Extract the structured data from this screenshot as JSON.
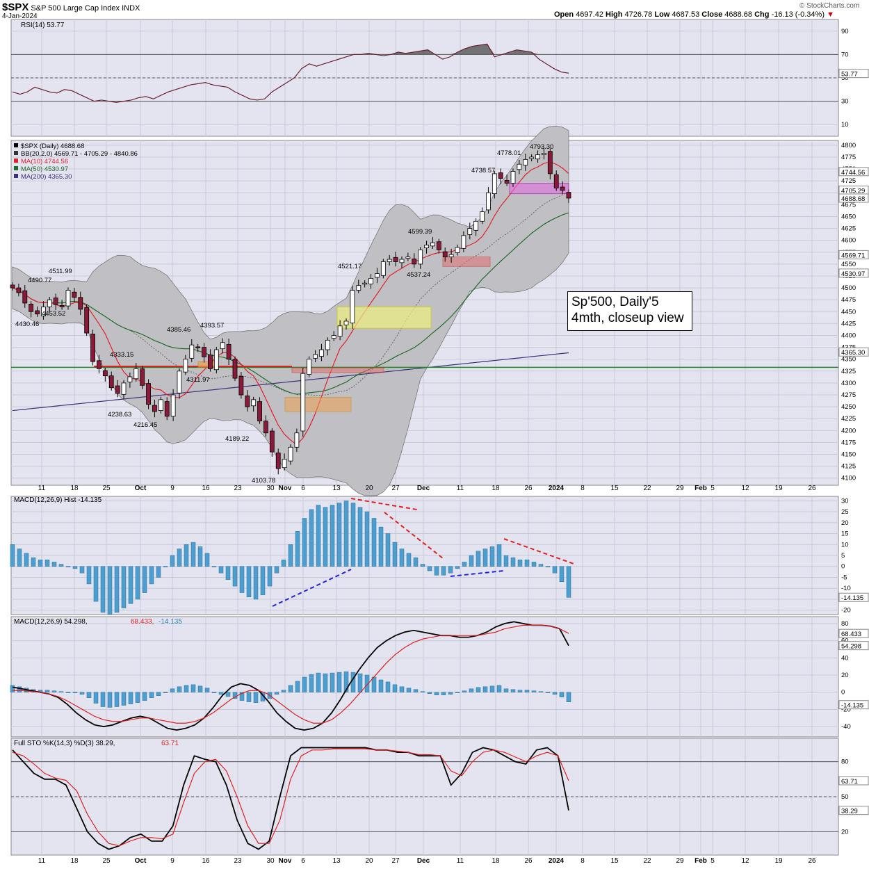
{
  "header": {
    "ticker": "$SPX",
    "name": "S&P 500 Large Cap Index",
    "exchange": "INDX",
    "date": "4-Jan-2024",
    "watermark": "© StockCharts.com",
    "quote": {
      "open_label": "Open",
      "open": "4697.42",
      "high_label": "High",
      "high": "4726.78",
      "low_label": "Low",
      "low": "4687.53",
      "close_label": "Close",
      "close": "4688.68",
      "chg_label": "Chg",
      "chg": "-16.13 (-0.34%)"
    }
  },
  "panels": {
    "rsi": {
      "legend": "RSI(14) 53.77",
      "ticks": [
        "90",
        "70",
        "50",
        "30",
        "10"
      ],
      "tag": "53.77"
    },
    "price": {
      "legend": [
        "$SPX (Daily) 4688.68",
        "BB(20,2.0) 4569.71 - 4705.29 - 4840.86",
        "MA(10) 4744.56",
        "MA(50) 4530.97",
        "MA(200) 4365.30"
      ],
      "ticks": [
        "4800",
        "4775",
        "4750",
        "4725",
        "4700",
        "4675",
        "4650",
        "4625",
        "4600",
        "4575",
        "4550",
        "4525",
        "4500",
        "4475",
        "4450",
        "4425",
        "4400",
        "4375",
        "4350",
        "4325",
        "4300",
        "4275",
        "4250",
        "4225",
        "4200",
        "4175",
        "4150",
        "4125",
        "4100"
      ],
      "tags": [
        "4744.56",
        "4705.29",
        "4688.68",
        "4569.71",
        "4530.97",
        "4365.30"
      ],
      "annotations": [
        "4511.99",
        "4490.77",
        "4453.52",
        "4430.46",
        "4333.15",
        "4238.63",
        "4216.45",
        "4385.46",
        "4393.57",
        "4311.97",
        "4189.22",
        "4103.78",
        "4521.17",
        "4537.24",
        "4599.39",
        "4738.57",
        "4778.01",
        "4793.30"
      ],
      "note": [
        "Sp'500, Daily'5",
        "4mth, closeup view"
      ]
    },
    "macd_hist": {
      "legend": "MACD(12,26,9) Hist -14.135",
      "ticks": [
        "30",
        "25",
        "20",
        "15",
        "10",
        "5",
        "0",
        "-5",
        "-10",
        "-15",
        "-20"
      ],
      "tag": "-14.135"
    },
    "macd": {
      "legend_main": "MACD(12,26,9) 54.298,",
      "legend_signal": "68.433,",
      "legend_hist": "-14.135",
      "ticks": [
        "80",
        "60",
        "40",
        "20",
        "0",
        "-20",
        "-40"
      ],
      "tags": [
        "68.433",
        "54.298",
        "-14.135"
      ]
    },
    "sto": {
      "legend_main": "Full STO %K(14,3) %D(3) 38.29,",
      "legend_d": "63.71",
      "ticks": [
        "80",
        "50",
        "20"
      ],
      "tags": [
        "63.71",
        "38.29"
      ]
    }
  },
  "x_axis": {
    "labels": [
      "11",
      "18",
      "25",
      "Oct",
      "9",
      "16",
      "23",
      "30",
      "Nov",
      "6",
      "13",
      "20",
      "27",
      "Dec",
      "11",
      "18",
      "26",
      "2024",
      "8",
      "15",
      "22",
      "29",
      "Feb",
      "5",
      "12",
      "19",
      "26"
    ],
    "bold": [
      "Oct",
      "Nov",
      "Dec",
      "2024",
      "Feb"
    ]
  },
  "colors": {
    "up_candle": "#ffffff",
    "down_candle": "#8b1a3a",
    "bb_fill": "#c0c0c4",
    "ma10": "#e0202a",
    "ma50": "#1f6b2a",
    "ma200": "#3a2f7a",
    "support_line": "#1f8a1f",
    "resistance_line": "#e02020",
    "hist_bar": "#4a9fd0",
    "rsi_line": "#6b2030",
    "sto_k": "#000000",
    "sto_d": "#e02020",
    "panel_bg": "#e4e4f0",
    "divergence_bear": "#e02020",
    "divergence_bull": "#2020e0"
  },
  "chart_data": [
    {
      "type": "line",
      "name": "RSI(14)",
      "ylim": [
        0,
        100
      ],
      "last": 53.77,
      "values": [
        38,
        36,
        38,
        42,
        40,
        38,
        37,
        40,
        39,
        36,
        33,
        30,
        31,
        30,
        29,
        30,
        31,
        33,
        34,
        32,
        35,
        38,
        40,
        42,
        44,
        45,
        46,
        44,
        43,
        42,
        38,
        35,
        32,
        31,
        32,
        38,
        42,
        46,
        50,
        58,
        62,
        60,
        62,
        64,
        66,
        68,
        70,
        70,
        71,
        70,
        69,
        70,
        72,
        71,
        72,
        73,
        74,
        70,
        66,
        68,
        72,
        75,
        77,
        78,
        79,
        68,
        70,
        72,
        74,
        73,
        72,
        66,
        62,
        58,
        55,
        54
      ]
    },
    {
      "type": "candlestick",
      "name": "$SPX (Daily)",
      "ylim": [
        4085,
        4810
      ],
      "last_close": 4688.68,
      "ma10_last": 4744.56,
      "ma50_last": 4530.97,
      "ma200_last": 4365.3,
      "bb_last": [
        4569.71,
        4705.29,
        4840.86
      ],
      "closes": [
        4500,
        4490,
        4468,
        4450,
        4445,
        4460,
        4475,
        4465,
        4460,
        4495,
        4480,
        4455,
        4405,
        4345,
        4330,
        4315,
        4290,
        4278,
        4300,
        4313,
        4330,
        4295,
        4255,
        4240,
        4265,
        4230,
        4275,
        4325,
        4350,
        4380,
        4375,
        4355,
        4330,
        4370,
        4385,
        4350,
        4310,
        4275,
        4250,
        4265,
        4220,
        4195,
        4155,
        4120,
        4140,
        4165,
        4195,
        4320,
        4350,
        4360,
        4370,
        4390,
        4400,
        4420,
        4430,
        4495,
        4505,
        4510,
        4520,
        4530,
        4555,
        4560,
        4555,
        4560,
        4565,
        4550,
        4580,
        4590,
        4595,
        4580,
        4565,
        4570,
        4585,
        4610,
        4625,
        4640,
        4660,
        4700,
        4740,
        4730,
        4720,
        4745,
        4760,
        4770,
        4775,
        4780,
        4783,
        4740,
        4710,
        4705,
        4688.68
      ]
    },
    {
      "type": "bar",
      "name": "MACD(12,26,9) Hist",
      "ylim": [
        -22,
        32
      ],
      "last": -14.135,
      "values": [
        10,
        8,
        6,
        4,
        3,
        3,
        2,
        1,
        0,
        -1,
        -3,
        -8,
        -16,
        -21,
        -22,
        -21,
        -19,
        -17,
        -15,
        -12,
        -8,
        -5,
        0,
        5,
        8,
        10,
        11,
        9,
        6,
        0,
        -3,
        -6,
        -9,
        -12,
        -14,
        -15,
        -13,
        -9,
        -3,
        3,
        10,
        16,
        22,
        26,
        28,
        27,
        28,
        29,
        30,
        29,
        27,
        25,
        22,
        18,
        15,
        11,
        8,
        6,
        4,
        1,
        -2,
        -4,
        -4,
        -3,
        -1,
        2,
        5,
        7,
        8,
        9,
        10,
        5,
        4,
        3,
        3,
        2,
        1,
        0,
        -3,
        -7,
        -14.135
      ]
    },
    {
      "type": "line",
      "name": "MACD(12,26,9)",
      "ylim": [
        -52,
        88
      ],
      "series": [
        {
          "name": "MACD",
          "last": 54.298,
          "values": [
            6,
            4,
            2,
            0,
            -2,
            -6,
            -14,
            -24,
            -32,
            -38,
            -40,
            -38,
            -34,
            -30,
            -28,
            -30,
            -36,
            -42,
            -44,
            -42,
            -38,
            -30,
            -18,
            -4,
            6,
            10,
            8,
            2,
            -10,
            -24,
            -34,
            -42,
            -44,
            -42,
            -36,
            -24,
            -8,
            10,
            26,
            40,
            52,
            60,
            66,
            70,
            72,
            70,
            68,
            66,
            66,
            64,
            64,
            66,
            70,
            76,
            80,
            82,
            80,
            78,
            78,
            77,
            74,
            54.298
          ]
        },
        {
          "name": "Signal",
          "last": 68.433,
          "values": [
            2,
            2,
            1,
            0,
            -2,
            -5,
            -10,
            -16,
            -22,
            -28,
            -32,
            -34,
            -34,
            -32,
            -30,
            -30,
            -32,
            -34,
            -36,
            -36,
            -34,
            -30,
            -24,
            -16,
            -8,
            -2,
            2,
            2,
            -2,
            -10,
            -18,
            -26,
            -32,
            -36,
            -36,
            -32,
            -24,
            -14,
            -2,
            10,
            22,
            34,
            44,
            52,
            58,
            62,
            64,
            66,
            66,
            66,
            66,
            66,
            68,
            70,
            74,
            76,
            78,
            78,
            78,
            77,
            74,
            68.433
          ]
        }
      ]
    },
    {
      "type": "line",
      "name": "Full STO %K(14,3) %D(3)",
      "ylim": [
        0,
        100
      ],
      "series": [
        {
          "name": "%K",
          "last": 38.29,
          "values": [
            90,
            80,
            70,
            65,
            65,
            60,
            40,
            20,
            10,
            5,
            8,
            15,
            18,
            12,
            12,
            25,
            60,
            85,
            82,
            80,
            60,
            30,
            10,
            5,
            12,
            50,
            85,
            92,
            92,
            92,
            92,
            92,
            92,
            92,
            90,
            90,
            88,
            88,
            85,
            85,
            85,
            60,
            70,
            88,
            92,
            90,
            85,
            80,
            78,
            90,
            92,
            85,
            38.29
          ]
        },
        {
          "name": "%D",
          "last": 63.71,
          "values": [
            88,
            85,
            78,
            70,
            66,
            64,
            55,
            35,
            20,
            10,
            8,
            12,
            15,
            15,
            14,
            18,
            45,
            70,
            80,
            82,
            72,
            50,
            25,
            10,
            10,
            30,
            65,
            85,
            90,
            90,
            91,
            91,
            91,
            91,
            90,
            90,
            89,
            88,
            86,
            86,
            85,
            72,
            68,
            80,
            88,
            90,
            88,
            84,
            80,
            85,
            88,
            85,
            63.71
          ]
        }
      ]
    }
  ]
}
